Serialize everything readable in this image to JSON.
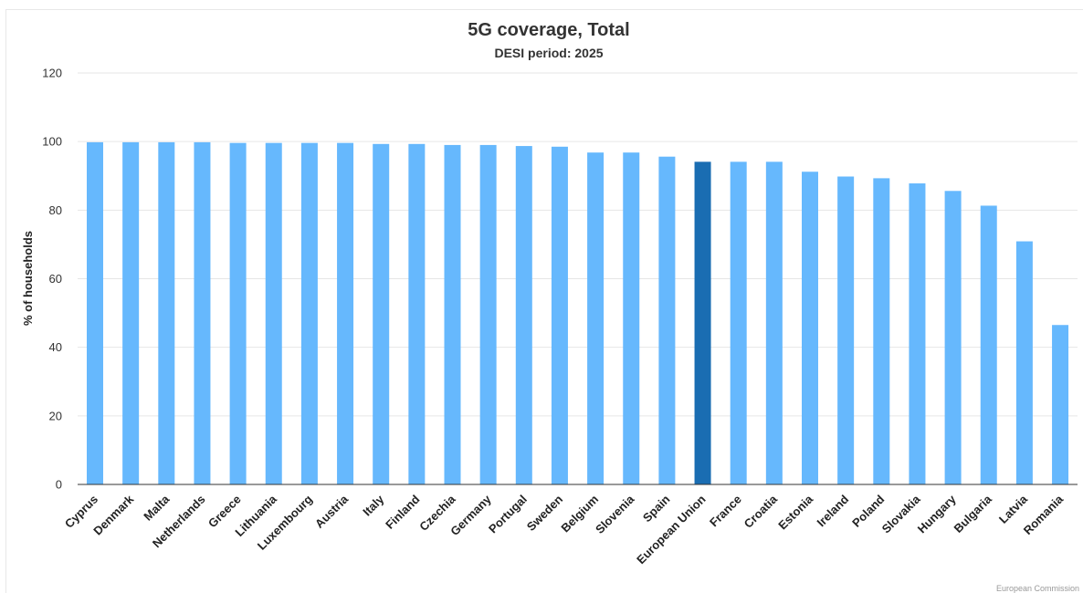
{
  "chart_data": {
    "type": "bar",
    "title": "5G coverage, Total",
    "subtitle": "DESI period: 2025",
    "ylabel": "% of households",
    "xlabel": "",
    "ylim": [
      0,
      120
    ],
    "yticks": [
      0,
      20,
      40,
      60,
      80,
      100,
      120
    ],
    "grid": true,
    "legend": "none",
    "credit": "European Commission",
    "colors": {
      "default": "#66b8fd",
      "highlight": "#1a6db2"
    },
    "highlight_category": "European Union",
    "categories": [
      "Cyprus",
      "Denmark",
      "Malta",
      "Netherlands",
      "Greece",
      "Lithuania",
      "Luxembourg",
      "Austria",
      "Italy",
      "Finland",
      "Czechia",
      "Germany",
      "Portugal",
      "Sweden",
      "Belgium",
      "Slovenia",
      "Spain",
      "European Union",
      "France",
      "Croatia",
      "Estonia",
      "Ireland",
      "Poland",
      "Slovakia",
      "Hungary",
      "Bulgaria",
      "Latvia",
      "Romania"
    ],
    "values": [
      99.8,
      99.8,
      99.8,
      99.8,
      99.6,
      99.6,
      99.6,
      99.6,
      99.3,
      99.3,
      99.0,
      99.0,
      98.7,
      98.5,
      96.8,
      96.8,
      95.6,
      94.1,
      94.1,
      94.1,
      91.2,
      89.8,
      89.3,
      87.8,
      85.6,
      81.3,
      70.9,
      46.5
    ]
  }
}
